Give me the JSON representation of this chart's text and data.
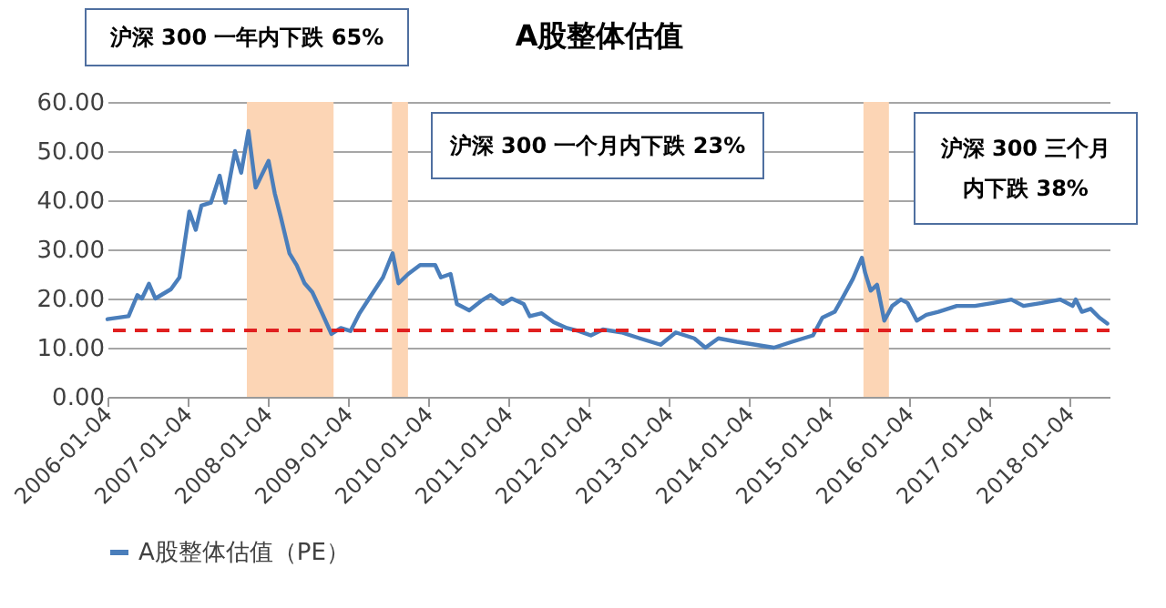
{
  "chart_data": {
    "type": "line",
    "title": "A股整体估值",
    "x": [
      "2006-01-04",
      "2006-04-10",
      "2006-05-20",
      "2006-06-10",
      "2006-07-12",
      "2006-08-10",
      "2006-10-20",
      "2006-11-28",
      "2007-01-12",
      "2007-02-10",
      "2007-03-08",
      "2007-04-20",
      "2007-05-30",
      "2007-06-25",
      "2007-08-08",
      "2007-09-05",
      "2007-10-08",
      "2007-11-10",
      "2008-01-08",
      "2008-02-05",
      "2008-03-04",
      "2008-04-12",
      "2008-05-15",
      "2008-06-20",
      "2008-07-25",
      "2008-09-08",
      "2008-10-20",
      "2008-12-02",
      "2009-01-15",
      "2009-02-25",
      "2009-04-20",
      "2009-06-12",
      "2009-07-26",
      "2009-08-22",
      "2009-10-05",
      "2009-11-28",
      "2010-02-05",
      "2010-03-03",
      "2010-04-16",
      "2010-05-15",
      "2010-07-10",
      "2010-09-02",
      "2010-10-16",
      "2010-12-10",
      "2011-01-20",
      "2011-03-15",
      "2011-04-12",
      "2011-06-05",
      "2011-07-30",
      "2011-09-28",
      "2011-11-20",
      "2012-01-15",
      "2012-03-10",
      "2012-06-03",
      "2012-08-25",
      "2012-11-28",
      "2013-02-05",
      "2013-04-30",
      "2013-06-20",
      "2013-08-18",
      "2013-11-10",
      "2014-02-03",
      "2014-04-28",
      "2014-07-20",
      "2014-10-23",
      "2014-12-05",
      "2015-01-30",
      "2015-03-10",
      "2015-04-23",
      "2015-06-03",
      "2015-06-18",
      "2015-07-13",
      "2015-08-11",
      "2015-09-13",
      "2015-10-19",
      "2015-11-28",
      "2015-12-28",
      "2016-02-08",
      "2016-03-23",
      "2016-05-16",
      "2016-08-08",
      "2016-10-30",
      "2017-01-20",
      "2017-04-14",
      "2017-06-08",
      "2017-08-30",
      "2017-11-22",
      "2018-01-18",
      "2018-02-01",
      "2018-03-01",
      "2018-04-10",
      "2018-05-20",
      "2018-06-25"
    ],
    "series": [
      {
        "name": "A股整体估值（PE）",
        "color": "#4a7ebb",
        "values": [
          15.8,
          16.4,
          20.7,
          20.0,
          23.0,
          20.0,
          21.9,
          24.3,
          37.7,
          34.0,
          38.9,
          39.5,
          45.0,
          39.5,
          50.0,
          45.6,
          54.1,
          42.6,
          48.0,
          41.4,
          36.5,
          29.2,
          26.8,
          23.1,
          21.3,
          17.0,
          12.8,
          14.0,
          13.4,
          17.0,
          20.7,
          24.3,
          29.2,
          23.1,
          25.0,
          26.8,
          26.8,
          24.3,
          25.0,
          18.9,
          17.6,
          19.5,
          20.7,
          18.9,
          20.0,
          18.9,
          16.4,
          17.0,
          15.2,
          14.0,
          13.4,
          12.5,
          13.7,
          13.1,
          11.9,
          10.6,
          13.1,
          11.9,
          10.0,
          11.9,
          11.2,
          10.6,
          10.0,
          11.2,
          12.5,
          16.1,
          17.3,
          20.4,
          24.0,
          28.3,
          25.2,
          21.6,
          22.8,
          15.5,
          18.5,
          19.8,
          19.1,
          15.5,
          16.7,
          17.3,
          18.5,
          18.5,
          19.1,
          19.8,
          18.5,
          19.1,
          19.8,
          18.5,
          19.8,
          17.3,
          17.9,
          16.1,
          14.9
        ]
      }
    ],
    "xlim": [
      "2006-01-04",
      "2018-07-05"
    ],
    "xticks": [
      "2006-01-04",
      "2007-01-04",
      "2008-01-04",
      "2009-01-04",
      "2010-01-04",
      "2011-01-04",
      "2012-01-04",
      "2013-01-04",
      "2014-01-04",
      "2015-01-04",
      "2016-01-04",
      "2017-01-04",
      "2018-01-04"
    ],
    "ylim": [
      0,
      60
    ],
    "yticks": [
      {
        "value": 0,
        "label": "0.00"
      },
      {
        "value": 10,
        "label": "10.00"
      },
      {
        "value": 20,
        "label": "20.00"
      },
      {
        "value": 30,
        "label": "30.00"
      },
      {
        "value": 40,
        "label": "40.00"
      },
      {
        "value": 50,
        "label": "50.00"
      },
      {
        "value": 60,
        "label": "60.00"
      }
    ],
    "ref_lines": [
      {
        "axis": "y",
        "value": 13.5,
        "color": "#e02020",
        "line_style": "dashed"
      }
    ],
    "bands": [
      {
        "axis": "x",
        "from": "2007-10-01",
        "to": "2008-10-30",
        "color": "#fcd5b5"
      },
      {
        "axis": "x",
        "from": "2009-07-23",
        "to": "2009-10-04",
        "color": "#fcd5b5"
      },
      {
        "axis": "x",
        "from": "2015-06-10",
        "to": "2015-10-04",
        "color": "#fcd5b5"
      }
    ],
    "annotations": [
      "沪深 300 一年内下跌 65%",
      "沪深 300 一个月内下跌 23%",
      "沪深 300 三个月内下跌 38%"
    ],
    "grid": "y",
    "legend": "bottom"
  }
}
